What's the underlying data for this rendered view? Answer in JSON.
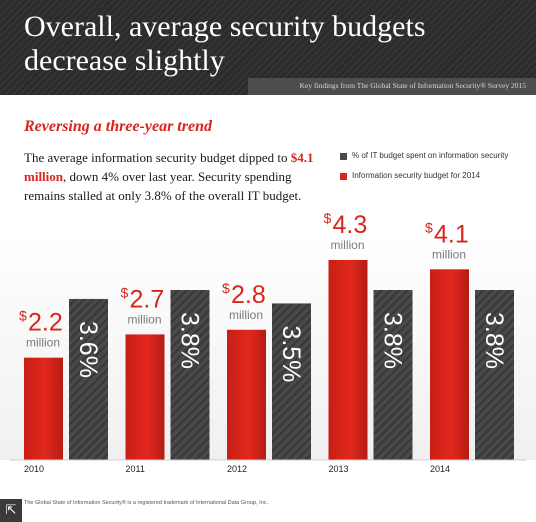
{
  "header": {
    "title": "Overall, average security budgets decrease slightly",
    "source_bar": "Key findings from The Global State of Information Security® Survey 2015"
  },
  "intro": {
    "subtitle": "Reversing a three-year trend",
    "text_before": "The average information security budget dipped to ",
    "highlight": "$4.1 million",
    "text_after": ", down 4% over last year. Security spending remains stalled at only 3.8% of the overall IT budget."
  },
  "legend": {
    "items": [
      {
        "label": "% of IT budget spent on information security",
        "color": "#4a4a4a"
      },
      {
        "label": "Information security budget for 2014",
        "color": "#d9261c"
      }
    ]
  },
  "colors": {
    "accent_red": "#d9261c",
    "accent_red_dark": "#b51c14",
    "bar_gray": "#4a4a4a",
    "bar_gray_dark": "#2f2f2f",
    "unit_gray": "#7a7a7a"
  },
  "chart_data": {
    "type": "bar",
    "categories": [
      "2010",
      "2011",
      "2012",
      "2013",
      "2014"
    ],
    "series": [
      {
        "name": "Information security budget for 2014",
        "values": [
          2.2,
          2.7,
          2.8,
          4.3,
          4.1
        ],
        "label_number": [
          "2.2",
          "2.7",
          "2.8",
          "4.3",
          "4.1"
        ],
        "label_symbol": "$",
        "label_unit": "million"
      },
      {
        "name": "% of IT budget spent on information security",
        "values": [
          3.6,
          3.8,
          3.5,
          3.8,
          3.8
        ],
        "labels": [
          "3.6%",
          "3.8%",
          "3.5%",
          "3.8%",
          "3.8%"
        ]
      }
    ],
    "title": "",
    "xlabel": "",
    "ylabel": "",
    "grid": false
  },
  "footer": {
    "footnote": "The Global State of Information Security® is a registered trademark of International Data Group, Inc.",
    "icon": "expand-icon"
  }
}
